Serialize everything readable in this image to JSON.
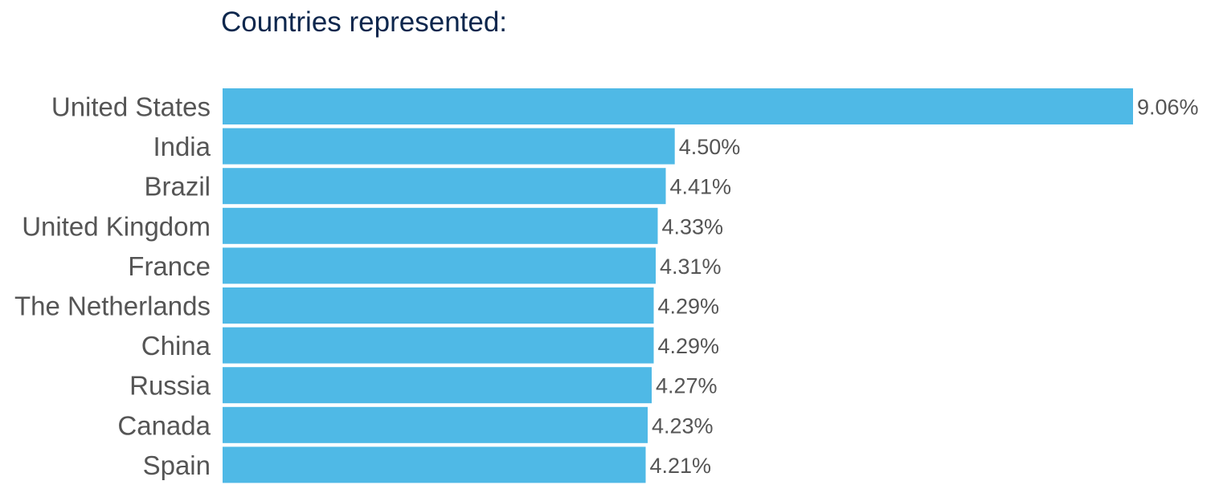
{
  "chart_data": {
    "type": "bar",
    "orientation": "horizontal",
    "title": "Countries represented:",
    "categories": [
      "United States",
      "India",
      "Brazil",
      "United Kingdom",
      "France",
      "The Netherlands",
      "China",
      "Russia",
      "Canada",
      "Spain"
    ],
    "values": [
      9.06,
      4.5,
      4.41,
      4.33,
      4.31,
      4.29,
      4.29,
      4.27,
      4.23,
      4.21
    ],
    "value_labels": [
      "9.06%",
      "4.50%",
      "4.41%",
      "4.33%",
      "4.31%",
      "4.29%",
      "4.29%",
      "4.27%",
      "4.23%",
      "4.21%"
    ],
    "unit": "%",
    "xlabel": "",
    "ylabel": "",
    "xlim": [
      0,
      9.06
    ],
    "grid": false,
    "legend": "none",
    "colors": {
      "bar": "#4fb9e6",
      "title": "#0d274d",
      "label": "#555555"
    }
  }
}
